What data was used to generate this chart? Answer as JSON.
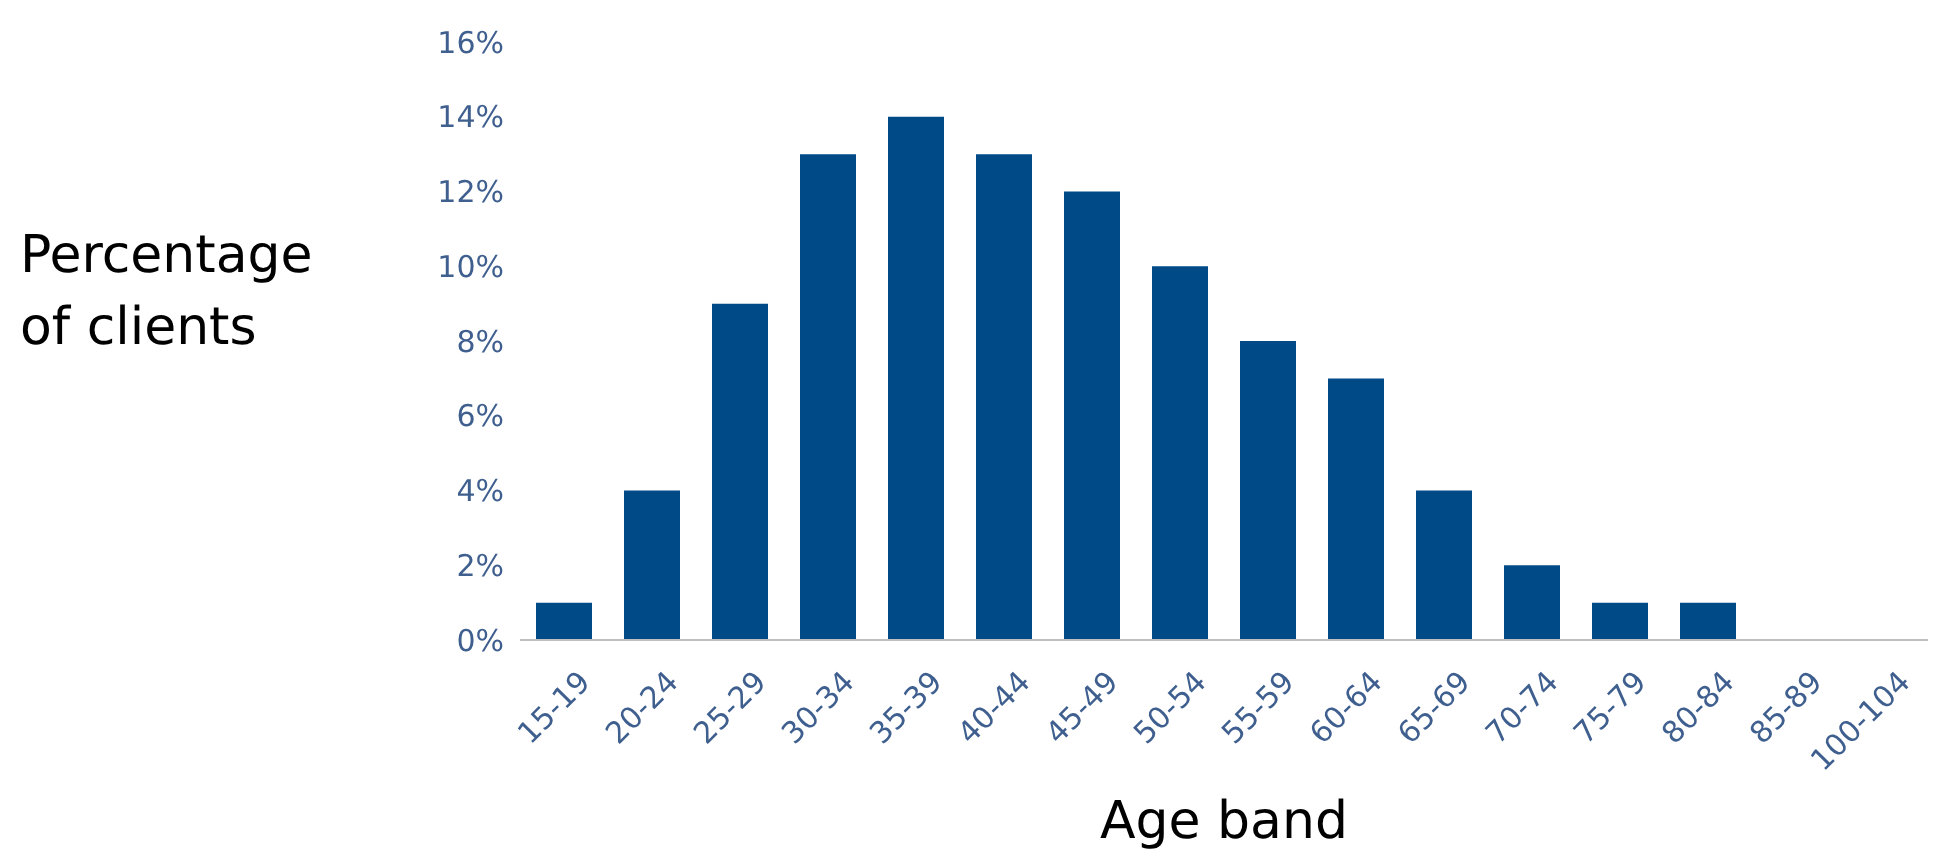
{
  "chart_data": {
    "type": "bar",
    "xlabel": "Age band",
    "ylabel": "Percentage of clients",
    "categories": [
      "15-19",
      "20-24",
      "25-29",
      "30-34",
      "35-39",
      "40-44",
      "45-49",
      "50-54",
      "55-59",
      "60-64",
      "65-69",
      "70-74",
      "75-79",
      "80-84",
      "85-89",
      "100-104"
    ],
    "values": [
      1,
      4,
      9,
      13,
      14,
      13,
      12,
      10,
      8,
      7,
      4,
      2,
      1,
      1,
      0,
      0
    ],
    "color": "#004a87",
    "ylim": [
      0,
      16
    ],
    "yticks": [
      {
        "value": 0,
        "label": "0%"
      },
      {
        "value": 2,
        "label": "2%"
      },
      {
        "value": 4,
        "label": "4%"
      },
      {
        "value": 6,
        "label": "6%"
      },
      {
        "value": 8,
        "label": "8%"
      },
      {
        "value": 10,
        "label": "10%"
      },
      {
        "value": 12,
        "label": "12%"
      },
      {
        "value": 14,
        "label": "14%"
      },
      {
        "value": 16,
        "label": "16%"
      }
    ],
    "grid": false,
    "legend": false
  }
}
